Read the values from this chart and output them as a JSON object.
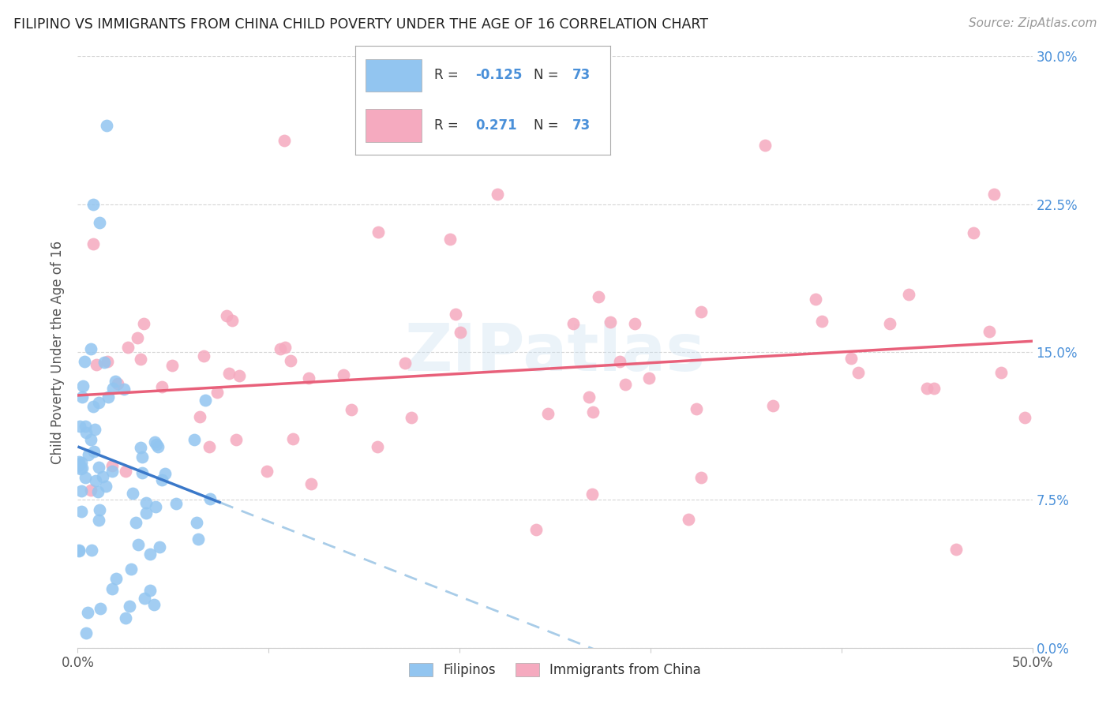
{
  "title": "FILIPINO VS IMMIGRANTS FROM CHINA CHILD POVERTY UNDER THE AGE OF 16 CORRELATION CHART",
  "source": "Source: ZipAtlas.com",
  "ylabel": "Child Poverty Under the Age of 16",
  "xlim": [
    0,
    50
  ],
  "ylim": [
    0,
    30
  ],
  "yticks": [
    0,
    7.5,
    15.0,
    22.5,
    30.0
  ],
  "xticks": [
    0,
    10,
    20,
    30,
    40,
    50
  ],
  "filipino_color": "#92C5F0",
  "china_color": "#F5AABF",
  "filipino_line_color": "#3A78C9",
  "china_line_color": "#E8607A",
  "filipino_dash_color": "#A8CCE8",
  "N": 73,
  "legend_label_1": "Filipinos",
  "legend_label_2": "Immigrants from China",
  "fil_intercept": 10.2,
  "fil_slope": -0.38,
  "china_intercept": 12.8,
  "china_slope": 0.055,
  "fil_solid_end": 7.5,
  "fil_dash_end": 50,
  "china_line_start": 0,
  "china_line_end": 50
}
